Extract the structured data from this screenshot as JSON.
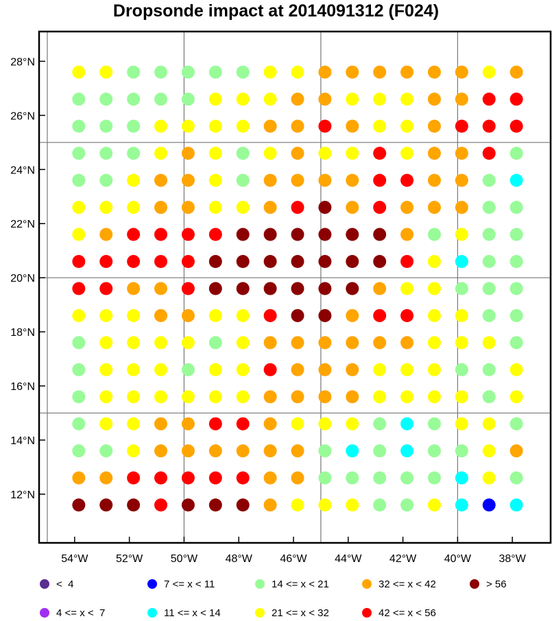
{
  "chart_data": {
    "type": "scatter",
    "title": "Dropsonde impact at 2014091312 (F024)",
    "xlabel": "",
    "ylabel": "",
    "xlim": [
      -55.3,
      -36.6
    ],
    "ylim": [
      10.2,
      29.1
    ],
    "x_ticks": [
      -54,
      -52,
      -50,
      -48,
      -46,
      -44,
      -42,
      -40,
      -38
    ],
    "x_tick_labels": [
      "54°W",
      "52°W",
      "50°W",
      "48°W",
      "46°W",
      "44°W",
      "42°W",
      "40°W",
      "38°W"
    ],
    "y_ticks": [
      12,
      14,
      16,
      18,
      20,
      22,
      24,
      26,
      28
    ],
    "y_tick_labels": [
      "12°N",
      "14°N",
      "16°N",
      "18°N",
      "20°N",
      "22°N",
      "24°N",
      "26°N",
      "28°N"
    ],
    "grid_lines_lon": [
      -55,
      -50,
      -45,
      -40,
      -35
    ],
    "grid_lines_lat": [
      10,
      15,
      20,
      25,
      30
    ],
    "grid": true,
    "legend_position": "bottom",
    "lon": [
      -53.85,
      -52.85,
      -51.85,
      -50.85,
      -49.85,
      -48.85,
      -47.85,
      -46.85,
      -45.85,
      -44.85,
      -43.85,
      -42.85,
      -41.85,
      -40.85,
      -39.85,
      -38.85,
      -37.85
    ],
    "lat": [
      27.6,
      26.6,
      25.6,
      24.6,
      23.6,
      22.6,
      21.6,
      20.6,
      19.6,
      18.6,
      17.6,
      16.6,
      15.6,
      14.6,
      13.6,
      12.6,
      11.6
    ],
    "bins": [
      {
        "label": "<  4",
        "color": "#5a2d91"
      },
      {
        "label": "4 <= x <  7",
        "color": "#a030f0"
      },
      {
        "label": "7 <= x < 11",
        "color": "#0000ff"
      },
      {
        "label": "11 <= x < 14",
        "color": "#00ffff"
      },
      {
        "label": "14 <= x < 21",
        "color": "#98fb98"
      },
      {
        "label": "21 <= x < 32",
        "color": "#ffff00"
      },
      {
        "label": "32 <= x < 42",
        "color": "#ffa500"
      },
      {
        "label": "42 <= x < 56",
        "color": "#ff0000"
      },
      {
        "label": "> 56",
        "color": "#8b0000"
      }
    ],
    "grid_bins": [
      "55444445566666656",
      "44444555665556677",
      "44455556676556777",
      "44456545655756674",
      "44566546666776643",
      "55566556786766644",
      "56777788888864544",
      "77777888888875344",
      "77667888888655444",
      "55566557886775544",
      "45555456666665554",
      "45554557666555445",
      "45555556666555545",
      "45566776555434554",
      "44566666643434456",
      "66777776644444354",
      "88878886555445323"
    ]
  }
}
